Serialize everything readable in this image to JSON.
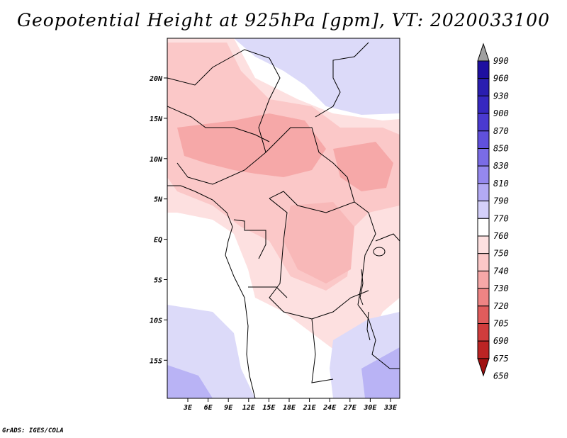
{
  "title": "Geopotential Height at 925hPa [gpm], VT: 2020033100",
  "credit": "GrADS: IGES/COLA",
  "map": {
    "lat_labels": [
      "20N",
      "15N",
      "10N",
      "5N",
      "EQ",
      "5S",
      "10S",
      "15S"
    ],
    "lon_labels": [
      "3E",
      "6E",
      "9E",
      "12E",
      "15E",
      "18E",
      "21E",
      "24E",
      "27E",
      "30E",
      "33E"
    ]
  },
  "colorbar": {
    "levels": [
      "990",
      "960",
      "930",
      "900",
      "870",
      "850",
      "830",
      "810",
      "790",
      "770",
      "760",
      "750",
      "740",
      "730",
      "720",
      "705",
      "690",
      "675",
      "650"
    ],
    "colors": [
      "#a0a0a0",
      "#1e0fa0",
      "#2a1eb0",
      "#3628c0",
      "#4a3ad0",
      "#6050dc",
      "#7a6ce6",
      "#9588ee",
      "#b3aaf4",
      "#d4d0fa",
      "#ffffff",
      "#fde0e0",
      "#fbc8c8",
      "#f6a8a8",
      "#ee8484",
      "#e05c5c",
      "#d03c3c",
      "#bc2424",
      "#a01010"
    ]
  }
}
